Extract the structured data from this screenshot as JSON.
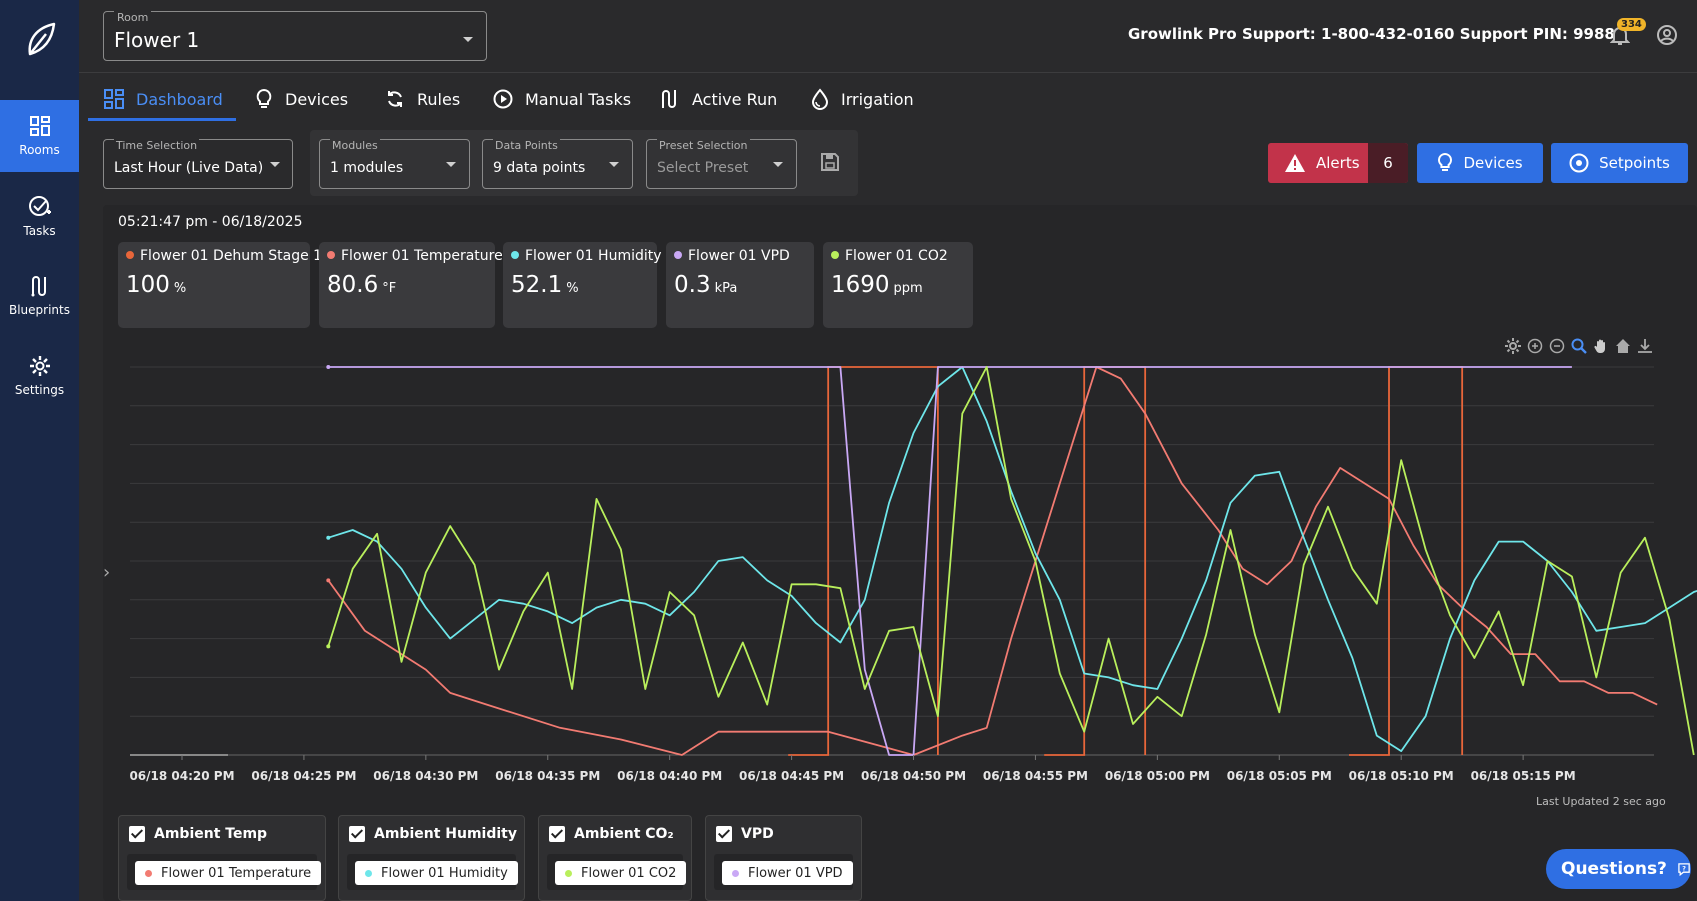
{
  "sidebar": {
    "items": [
      {
        "label": "Rooms",
        "icon": "rooms-grid-icon",
        "active": true
      },
      {
        "label": "Tasks",
        "icon": "tasks-check-icon"
      },
      {
        "label": "Blueprints",
        "icon": "blueprints-icon"
      },
      {
        "label": "Settings",
        "icon": "gear-icon"
      }
    ]
  },
  "header": {
    "room_label": "Room",
    "room_value": "Flower 1",
    "support_text": "Growlink Pro Support: 1-800-432-0160  Support PIN: 9988",
    "notification_count": "334"
  },
  "tabs": [
    {
      "label": "Dashboard",
      "icon": "dashboard-icon",
      "active": true
    },
    {
      "label": "Devices",
      "icon": "lightbulb-icon"
    },
    {
      "label": "Rules",
      "icon": "cycle-icon"
    },
    {
      "label": "Manual Tasks",
      "icon": "play-circle-icon"
    },
    {
      "label": "Active Run",
      "icon": "active-run-icon"
    },
    {
      "label": "Irrigation",
      "icon": "water-drop-icon"
    }
  ],
  "filters": {
    "time": {
      "label": "Time Selection",
      "value": "Last Hour (Live Data)"
    },
    "modules": {
      "label": "Modules",
      "value": "1 modules"
    },
    "datapoints": {
      "label": "Data Points",
      "value": "9 data points"
    },
    "preset": {
      "label": "Preset Selection",
      "placeholder": "Select Preset"
    }
  },
  "actions": {
    "alerts_label": "Alerts",
    "alerts_count": "6",
    "devices_label": "Devices",
    "setpoints_label": "Setpoints"
  },
  "timestamp": "05:21:47 pm - 06/18/2025",
  "readings": [
    {
      "name": "Flower 01 Dehum Stage 1",
      "value": "100",
      "unit": "%",
      "color": "#e8663a"
    },
    {
      "name": "Flower 01 Temperature",
      "value": "80.6",
      "unit": "°F",
      "color": "#f27b72"
    },
    {
      "name": "Flower 01 Humidity",
      "value": "52.1",
      "unit": "%",
      "color": "#6ee6ea"
    },
    {
      "name": "Flower 01 VPD",
      "value": "0.3",
      "unit": "kPa",
      "color": "#c9a8f5"
    },
    {
      "name": "Flower 01 CO2",
      "value": "1690",
      "unit": "ppm",
      "color": "#b9ef5c"
    }
  ],
  "chart_data": {
    "type": "line",
    "x": [
      "06/18 04:20 PM",
      "06/18 04:25 PM",
      "06/18 04:30 PM",
      "06/18 04:35 PM",
      "06/18 04:40 PM",
      "06/18 04:45 PM",
      "06/18 04:50 PM",
      "06/18 04:55 PM",
      "06/18 05:00 PM",
      "06/18 05:05 PM",
      "06/18 05:10 PM",
      "06/18 05:15 PM"
    ],
    "series": [
      {
        "name": "Flower 01 Temperature",
        "color": "#f27b72",
        "points": [
          [
            46.0,
            45
          ],
          [
            47.5,
            32
          ],
          [
            50.0,
            22
          ],
          [
            51.0,
            16
          ],
          [
            52.5,
            13
          ],
          [
            55.5,
            7
          ],
          [
            58.0,
            4
          ],
          [
            60.5,
            0
          ],
          [
            62.0,
            6
          ],
          [
            66.5,
            6
          ],
          [
            70.0,
            0
          ],
          [
            72.0,
            5
          ],
          [
            73.0,
            7
          ],
          [
            74.0,
            30
          ],
          [
            76.0,
            70
          ],
          [
            77.5,
            100
          ],
          [
            78.5,
            97
          ],
          [
            79.5,
            88
          ],
          [
            81.0,
            70
          ],
          [
            82.5,
            58
          ],
          [
            83.5,
            48
          ],
          [
            84.5,
            44
          ],
          [
            85.5,
            50
          ],
          [
            86.5,
            64
          ],
          [
            87.5,
            74
          ],
          [
            88.5,
            70
          ],
          [
            89.5,
            66
          ],
          [
            90.5,
            54
          ],
          [
            91.5,
            44
          ],
          [
            92.5,
            38
          ],
          [
            93.5,
            33
          ],
          [
            94.5,
            26
          ],
          [
            95.5,
            26
          ],
          [
            96.5,
            19
          ],
          [
            97.5,
            19
          ],
          [
            98.5,
            16
          ],
          [
            99.5,
            16
          ],
          [
            100.5,
            13
          ]
        ]
      },
      {
        "name": "Flower 01 Humidity",
        "color": "#6ee6ea",
        "points": [
          [
            46,
            56
          ],
          [
            47,
            58
          ],
          [
            48,
            55
          ],
          [
            49,
            48
          ],
          [
            50,
            38
          ],
          [
            51,
            30
          ],
          [
            52,
            35
          ],
          [
            53,
            40
          ],
          [
            54,
            39
          ],
          [
            55,
            37
          ],
          [
            56,
            34
          ],
          [
            57,
            38
          ],
          [
            58,
            40
          ],
          [
            59,
            39
          ],
          [
            60,
            36
          ],
          [
            61,
            42
          ],
          [
            62,
            50
          ],
          [
            63,
            51
          ],
          [
            64,
            45
          ],
          [
            65,
            41
          ],
          [
            66,
            34
          ],
          [
            67,
            29
          ],
          [
            68,
            40
          ],
          [
            69,
            65
          ],
          [
            70,
            83
          ],
          [
            71,
            95
          ],
          [
            72,
            100
          ],
          [
            73,
            86
          ],
          [
            74,
            68
          ],
          [
            75,
            52
          ],
          [
            76,
            40
          ],
          [
            77,
            21
          ],
          [
            78,
            20
          ],
          [
            79,
            18
          ],
          [
            80,
            17
          ],
          [
            81,
            30
          ],
          [
            82,
            45
          ],
          [
            83,
            65
          ],
          [
            84,
            72
          ],
          [
            85,
            73
          ],
          [
            86,
            56
          ],
          [
            87,
            40
          ],
          [
            88,
            25
          ],
          [
            89,
            5
          ],
          [
            90,
            1
          ],
          [
            91,
            10
          ],
          [
            92,
            30
          ],
          [
            93,
            45
          ],
          [
            94,
            55
          ],
          [
            95,
            55
          ],
          [
            96,
            50
          ],
          [
            97,
            42
          ],
          [
            98,
            32
          ],
          [
            99,
            33
          ],
          [
            100,
            34
          ],
          [
            101,
            38
          ],
          [
            102,
            42
          ],
          [
            103,
            44
          ],
          [
            104,
            43
          ],
          [
            105,
            37
          ]
        ]
      },
      {
        "name": "Flower 01 VPD",
        "color": "#c9a8f5",
        "points": [
          [
            46,
            100
          ],
          [
            67,
            100
          ],
          [
            68,
            22
          ],
          [
            69,
            0
          ],
          [
            70,
            0
          ],
          [
            71,
            100
          ],
          [
            97,
            100
          ]
        ]
      },
      {
        "name": "Flower 01 CO2",
        "color": "#b9ef5c",
        "points": [
          [
            46,
            28
          ],
          [
            47,
            48
          ],
          [
            48,
            57
          ],
          [
            49,
            24
          ],
          [
            50,
            47
          ],
          [
            51,
            59
          ],
          [
            52,
            49
          ],
          [
            53,
            22
          ],
          [
            54,
            37
          ],
          [
            55,
            47
          ],
          [
            56,
            17
          ],
          [
            57,
            66
          ],
          [
            58,
            53
          ],
          [
            59,
            17
          ],
          [
            60,
            42
          ],
          [
            61,
            36
          ],
          [
            62,
            15
          ],
          [
            63,
            29
          ],
          [
            64,
            13
          ],
          [
            65,
            44
          ],
          [
            66,
            44
          ],
          [
            67,
            43
          ],
          [
            68,
            17
          ],
          [
            69,
            32
          ],
          [
            70,
            33
          ],
          [
            71,
            10
          ],
          [
            72,
            88
          ],
          [
            73,
            100
          ],
          [
            74,
            66
          ],
          [
            75,
            50
          ],
          [
            76,
            21
          ],
          [
            77,
            6
          ],
          [
            78,
            30
          ],
          [
            79,
            8
          ],
          [
            80,
            15
          ],
          [
            81,
            10
          ],
          [
            82,
            31
          ],
          [
            83,
            58
          ],
          [
            84,
            31
          ],
          [
            85,
            11
          ],
          [
            86,
            49
          ],
          [
            87,
            64
          ],
          [
            88,
            48
          ],
          [
            89,
            39
          ],
          [
            90,
            76
          ],
          [
            91,
            53
          ],
          [
            92,
            36
          ],
          [
            93,
            25
          ],
          [
            94,
            37
          ],
          [
            95,
            18
          ],
          [
            96,
            50
          ],
          [
            97,
            46
          ],
          [
            98,
            20
          ],
          [
            99,
            47
          ],
          [
            100,
            56
          ],
          [
            101,
            35
          ],
          [
            102,
            0
          ]
        ]
      },
      {
        "name": "Flower 01 Dehum Stage 1",
        "color": "#e8663a",
        "on_intervals": [
          [
            66.5,
            71.0
          ],
          [
            77.0,
            79.5
          ],
          [
            89.5,
            92.5
          ]
        ]
      }
    ],
    "x_minutes_range": [
      40,
      102.5
    ],
    "ylim": [
      0,
      100
    ],
    "grid": true,
    "last_updated": "Last Updated 2 sec ago"
  },
  "legend_groups": [
    {
      "title": "Ambient Temp",
      "item": "Flower 01 Temperature",
      "color": "#f27b72"
    },
    {
      "title": "Ambient Humidity",
      "item": "Flower 01 Humidity",
      "color": "#6ee6ea"
    },
    {
      "title": "Ambient CO₂",
      "item": "Flower 01 CO2",
      "color": "#b9ef5c"
    },
    {
      "title": "VPD",
      "item": "Flower 01 VPD",
      "color": "#c9a8f5"
    }
  ],
  "help": {
    "label": "Questions?"
  }
}
